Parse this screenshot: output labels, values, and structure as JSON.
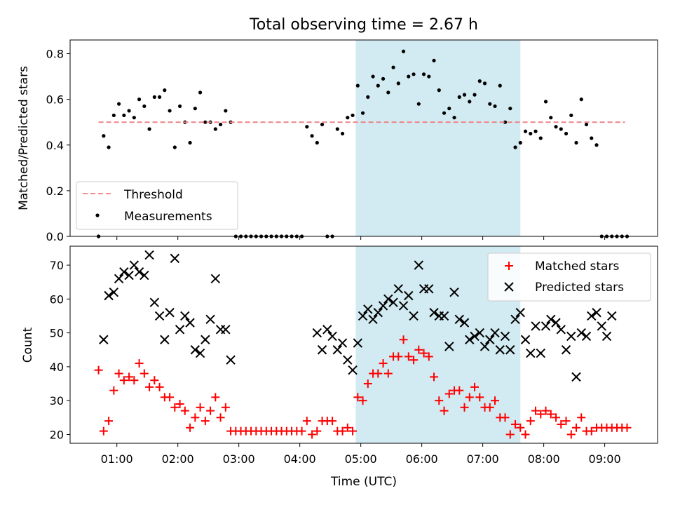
{
  "chart_data": [
    {
      "type": "scatter",
      "title": "Total observing time = 2.67 h",
      "ylabel": "Matched/Predicted stars",
      "xlabel": "",
      "xlim": [
        "00:14",
        "09:52"
      ],
      "ylim": [
        0,
        0.86
      ],
      "yticks": [
        "0.0",
        "0.2",
        "0.4",
        "0.6",
        "0.8"
      ],
      "grid": false,
      "legend_position": "lower-left",
      "shaded_interval": [
        "04:55",
        "07:37"
      ],
      "shade_color": "#add8e6",
      "threshold": {
        "name": "Threshold",
        "y": 0.5,
        "x_range": [
          "00:42",
          "09:20"
        ],
        "color": "#f08080"
      },
      "series": [
        {
          "name": "Measurements",
          "color": "#000000",
          "x": [
            "00:42",
            "00:47",
            "00:52",
            "00:57",
            "01:02",
            "01:07",
            "01:12",
            "01:17",
            "01:22",
            "01:27",
            "01:32",
            "01:37",
            "01:42",
            "01:47",
            "01:52",
            "01:57",
            "02:02",
            "02:07",
            "02:12",
            "02:17",
            "02:22",
            "02:27",
            "02:32",
            "02:37",
            "02:42",
            "02:47",
            "02:52",
            "02:57",
            "03:02",
            "03:07",
            "03:12",
            "03:17",
            "03:22",
            "03:27",
            "03:32",
            "03:37",
            "03:42",
            "03:47",
            "03:52",
            "03:57",
            "04:02",
            "04:07",
            "04:12",
            "04:17",
            "04:22",
            "04:27",
            "04:32",
            "04:37",
            "04:42",
            "04:47",
            "04:52",
            "04:57",
            "05:02",
            "05:07",
            "05:12",
            "05:17",
            "05:22",
            "05:27",
            "05:32",
            "05:37",
            "05:42",
            "05:47",
            "05:52",
            "05:57",
            "06:02",
            "06:07",
            "06:12",
            "06:17",
            "06:22",
            "06:27",
            "06:32",
            "06:37",
            "06:42",
            "06:47",
            "06:52",
            "06:57",
            "07:02",
            "07:07",
            "07:12",
            "07:17",
            "07:22",
            "07:27",
            "07:32",
            "07:37",
            "07:42",
            "07:47",
            "07:52",
            "07:57",
            "08:02",
            "08:07",
            "08:12",
            "08:17",
            "08:22",
            "08:27",
            "08:32",
            "08:37",
            "08:42",
            "08:47",
            "08:52",
            "08:57",
            "09:02",
            "09:07",
            "09:12",
            "09:17",
            "09:22"
          ],
          "y": [
            0.0,
            0.44,
            0.39,
            0.53,
            0.58,
            0.53,
            0.55,
            0.52,
            0.6,
            0.57,
            0.47,
            0.61,
            0.61,
            0.64,
            0.55,
            0.39,
            0.57,
            0.5,
            0.41,
            0.56,
            0.63,
            0.5,
            0.5,
            0.47,
            0.49,
            0.55,
            0.5,
            0.0,
            0.0,
            0.0,
            0.0,
            0.0,
            0.0,
            0.0,
            0.0,
            0.0,
            0.0,
            0.0,
            0.0,
            0.0,
            0.0,
            0.48,
            0.44,
            0.41,
            0.49,
            0.0,
            0.0,
            0.47,
            0.45,
            0.52,
            0.53,
            0.66,
            0.54,
            0.61,
            0.7,
            0.66,
            0.69,
            0.63,
            0.74,
            0.67,
            0.81,
            0.7,
            0.71,
            0.58,
            0.71,
            0.7,
            0.77,
            0.64,
            0.54,
            0.56,
            0.52,
            0.61,
            0.62,
            0.59,
            0.62,
            0.68,
            0.67,
            0.58,
            0.57,
            0.66,
            0.5,
            0.56,
            0.39,
            0.41,
            0.46,
            0.45,
            0.46,
            0.43,
            0.59,
            0.52,
            0.48,
            0.47,
            0.45,
            0.53,
            0.41,
            0.6,
            0.49,
            0.43,
            0.4,
            0.0,
            0.0,
            0.0,
            0.0,
            0.0,
            0.0
          ]
        }
      ]
    },
    {
      "type": "scatter",
      "title": "",
      "xlabel": "Time (UTC)",
      "ylabel": "Count",
      "xlim": [
        "00:14",
        "09:52"
      ],
      "ylim": [
        17.4,
        75.6
      ],
      "xticks": [
        "01:00",
        "02:00",
        "03:00",
        "04:00",
        "05:00",
        "06:00",
        "07:00",
        "08:00",
        "09:00"
      ],
      "yticks": [
        "20",
        "30",
        "40",
        "50",
        "60",
        "70"
      ],
      "grid": false,
      "legend_position": "top-right",
      "shaded_interval": [
        "04:55",
        "07:37"
      ],
      "shade_color": "#add8e6",
      "series": [
        {
          "name": "Matched stars",
          "marker": "plus",
          "color": "#ff0000",
          "x": [
            "00:42",
            "00:47",
            "00:52",
            "00:57",
            "01:02",
            "01:07",
            "01:12",
            "01:17",
            "01:22",
            "01:27",
            "01:32",
            "01:37",
            "01:42",
            "01:47",
            "01:52",
            "01:57",
            "02:02",
            "02:07",
            "02:12",
            "02:17",
            "02:22",
            "02:27",
            "02:32",
            "02:37",
            "02:42",
            "02:47",
            "02:52",
            "02:57",
            "03:02",
            "03:07",
            "03:12",
            "03:17",
            "03:22",
            "03:27",
            "03:32",
            "03:37",
            "03:42",
            "03:47",
            "03:52",
            "03:57",
            "04:02",
            "04:07",
            "04:12",
            "04:17",
            "04:22",
            "04:27",
            "04:32",
            "04:37",
            "04:42",
            "04:47",
            "04:52",
            "04:57",
            "05:02",
            "05:07",
            "05:12",
            "05:17",
            "05:22",
            "05:27",
            "05:32",
            "05:37",
            "05:42",
            "05:47",
            "05:52",
            "05:57",
            "06:02",
            "06:07",
            "06:12",
            "06:17",
            "06:22",
            "06:27",
            "06:32",
            "06:37",
            "06:42",
            "06:47",
            "06:52",
            "06:57",
            "07:02",
            "07:07",
            "07:12",
            "07:17",
            "07:22",
            "07:27",
            "07:32",
            "07:37",
            "07:42",
            "07:47",
            "07:52",
            "07:57",
            "08:02",
            "08:07",
            "08:12",
            "08:17",
            "08:22",
            "08:27",
            "08:32",
            "08:37",
            "08:42",
            "08:47",
            "08:52",
            "08:57",
            "09:02",
            "09:07",
            "09:12",
            "09:17",
            "09:22"
          ],
          "y": [
            39,
            21,
            24,
            33,
            38,
            36,
            37,
            36,
            41,
            38,
            34,
            36,
            34,
            31,
            31,
            28,
            29,
            27,
            22,
            25,
            28,
            24,
            27,
            31,
            25,
            28,
            21,
            21,
            21,
            21,
            21,
            21,
            21,
            21,
            21,
            21,
            21,
            21,
            21,
            21,
            21,
            24,
            20,
            21,
            24,
            24,
            24,
            21,
            21,
            22,
            21,
            31,
            30,
            35,
            38,
            38,
            41,
            38,
            43,
            43,
            48,
            43,
            42,
            45,
            44,
            43,
            37,
            30,
            27,
            32,
            33,
            33,
            28,
            31,
            34,
            31,
            28,
            28,
            30,
            25,
            25,
            20,
            23,
            22,
            20,
            24,
            27,
            26,
            27,
            26,
            25,
            23,
            24,
            20,
            22,
            25,
            21,
            21,
            22,
            22,
            22,
            22,
            22,
            22,
            22
          ]
        },
        {
          "name": "Predicted stars",
          "marker": "cross",
          "color": "#000000",
          "x": [
            "00:47",
            "00:52",
            "00:57",
            "01:02",
            "01:07",
            "01:12",
            "01:17",
            "01:22",
            "01:27",
            "01:32",
            "01:37",
            "01:42",
            "01:47",
            "01:52",
            "01:57",
            "02:02",
            "02:07",
            "02:12",
            "02:17",
            "02:22",
            "02:27",
            "02:32",
            "02:37",
            "02:42",
            "02:47",
            "02:52",
            "04:17",
            "04:22",
            "04:27",
            "04:32",
            "04:37",
            "04:42",
            "04:47",
            "04:52",
            "04:57",
            "05:02",
            "05:07",
            "05:12",
            "05:17",
            "05:22",
            "05:27",
            "05:32",
            "05:37",
            "05:42",
            "05:47",
            "05:52",
            "05:57",
            "06:02",
            "06:07",
            "06:12",
            "06:17",
            "06:22",
            "06:27",
            "06:32",
            "06:37",
            "06:42",
            "06:47",
            "06:52",
            "06:57",
            "07:02",
            "07:07",
            "07:12",
            "07:17",
            "07:22",
            "07:27",
            "07:32",
            "07:37",
            "07:42",
            "07:47",
            "07:52",
            "07:57",
            "08:02",
            "08:07",
            "08:12",
            "08:17",
            "08:22",
            "08:27",
            "08:32",
            "08:37",
            "08:42",
            "08:47",
            "08:52",
            "08:57",
            "09:02",
            "09:07"
          ],
          "y": [
            48,
            61,
            62,
            66,
            68,
            67,
            70,
            68,
            67,
            73,
            59,
            55,
            48,
            56,
            72,
            51,
            55,
            53,
            45,
            44,
            48,
            54,
            66,
            51,
            51,
            42,
            50,
            45,
            51,
            49,
            45,
            47,
            42,
            39,
            47,
            55,
            57,
            54,
            56,
            58,
            60,
            59,
            63,
            58,
            61,
            55,
            70,
            63,
            63,
            56,
            55,
            55,
            46,
            62,
            54,
            53,
            48,
            49,
            50,
            46,
            48,
            50,
            45,
            49,
            45,
            54,
            56,
            48,
            44,
            52,
            44,
            52,
            54,
            53,
            51,
            45,
            49,
            37,
            50,
            49,
            55,
            56,
            52,
            49,
            55
          ]
        }
      ]
    }
  ]
}
